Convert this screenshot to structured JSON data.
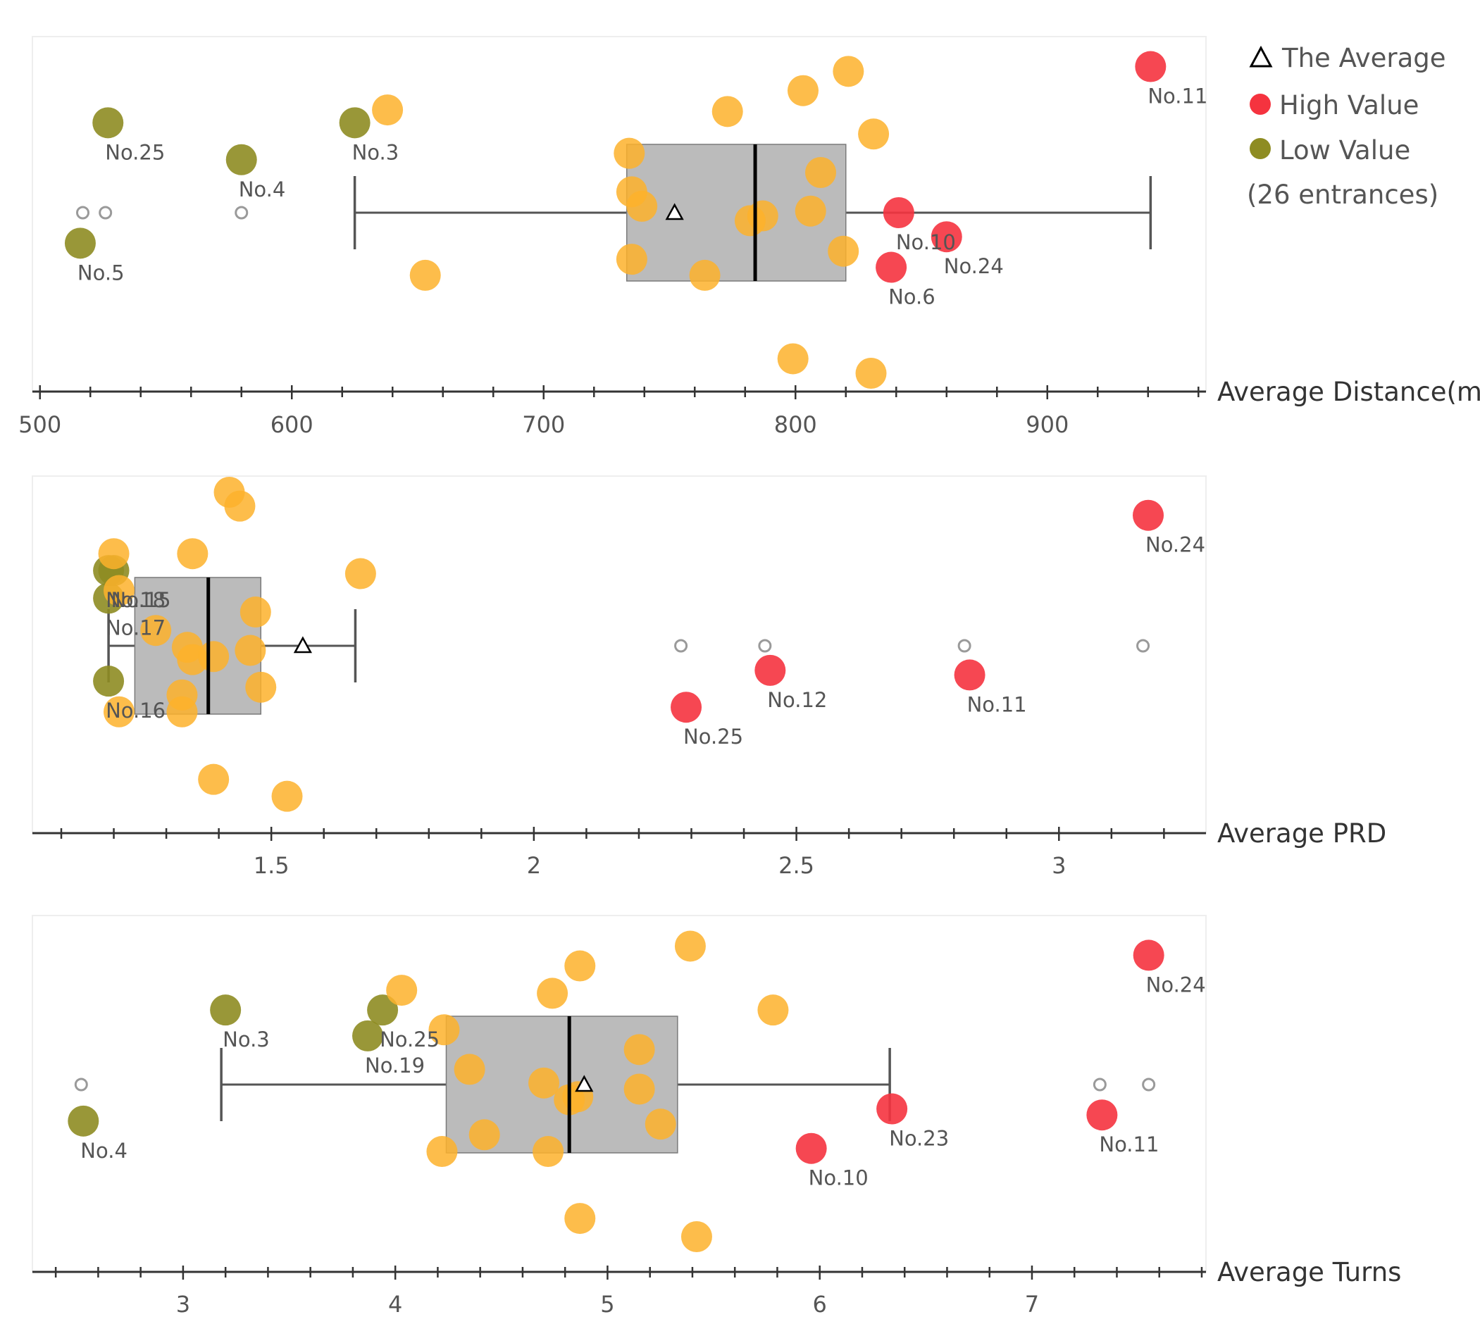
{
  "legend": {
    "average": "The Average",
    "high": "High Value",
    "low": "Low Value",
    "note": "(26 entrances)"
  },
  "colors": {
    "normal": "#FDB22B",
    "high": "#F5333F",
    "low": "#8E8C22",
    "box": "#9E9E9E",
    "whisker": "#555555",
    "median": "#000000",
    "outlier": "#9A9A9A",
    "frame": "#EEEEEE"
  },
  "chart_data": [
    {
      "type": "box-scatter",
      "xlabel": "Average Distance(m)",
      "xlim": [
        497,
        963
      ],
      "ticks": [
        500,
        600,
        700,
        800,
        900
      ],
      "tick_labels": [
        "500",
        "600",
        "700",
        "800",
        "900"
      ],
      "minor_step": 20,
      "box": {
        "q1": 733,
        "median": 784,
        "q3": 820,
        "whisker_low": 625,
        "whisker_high": 941,
        "mean": 752
      },
      "outliers": [
        517,
        526,
        580
      ],
      "points": [
        {
          "value": 941,
          "jitter": 0.91,
          "category": "high",
          "label": "No.11"
        },
        {
          "value": 841,
          "jitter": 0.0,
          "category": "high",
          "label": "No.10"
        },
        {
          "value": 860,
          "jitter": -0.15,
          "category": "high",
          "label": "No.24"
        },
        {
          "value": 838,
          "jitter": -0.34,
          "category": "high",
          "label": "No.6"
        },
        {
          "value": 527,
          "jitter": 0.56,
          "category": "low",
          "label": "No.25"
        },
        {
          "value": 580,
          "jitter": 0.33,
          "category": "low",
          "label": "No.4"
        },
        {
          "value": 625,
          "jitter": 0.56,
          "category": "low",
          "label": "No.3"
        },
        {
          "value": 516,
          "jitter": -0.19,
          "category": "low",
          "label": "No.5"
        },
        {
          "value": 821,
          "jitter": 0.88,
          "category": "normal",
          "label": ""
        },
        {
          "value": 803,
          "jitter": 0.76,
          "category": "normal",
          "label": ""
        },
        {
          "value": 638,
          "jitter": 0.64,
          "category": "normal",
          "label": ""
        },
        {
          "value": 773,
          "jitter": 0.63,
          "category": "normal",
          "label": ""
        },
        {
          "value": 831,
          "jitter": 0.49,
          "category": "normal",
          "label": ""
        },
        {
          "value": 734,
          "jitter": 0.37,
          "category": "normal",
          "label": ""
        },
        {
          "value": 810,
          "jitter": 0.25,
          "category": "normal",
          "label": ""
        },
        {
          "value": 735,
          "jitter": 0.13,
          "category": "normal",
          "label": ""
        },
        {
          "value": 739,
          "jitter": 0.04,
          "category": "normal",
          "label": ""
        },
        {
          "value": 806,
          "jitter": 0.01,
          "category": "normal",
          "label": ""
        },
        {
          "value": 787,
          "jitter": -0.02,
          "category": "normal",
          "label": ""
        },
        {
          "value": 782,
          "jitter": -0.05,
          "category": "normal",
          "label": ""
        },
        {
          "value": 819,
          "jitter": -0.24,
          "category": "normal",
          "label": ""
        },
        {
          "value": 735,
          "jitter": -0.29,
          "category": "normal",
          "label": ""
        },
        {
          "value": 653,
          "jitter": -0.39,
          "category": "normal",
          "label": ""
        },
        {
          "value": 764,
          "jitter": -0.39,
          "category": "normal",
          "label": ""
        },
        {
          "value": 799,
          "jitter": -0.91,
          "category": "normal",
          "label": ""
        },
        {
          "value": 830,
          "jitter": -1.0,
          "category": "normal",
          "label": ""
        }
      ]
    },
    {
      "type": "box-scatter",
      "xlabel": "Average PRD",
      "xlim": [
        1.045,
        3.28
      ],
      "ticks": [
        1.5,
        2,
        2.5,
        3
      ],
      "tick_labels": [
        "1.5",
        "2",
        "2.5",
        "3"
      ],
      "minor_step": 0.1,
      "box": {
        "q1": 1.24,
        "median": 1.38,
        "q3": 1.48,
        "whisker_low": 1.19,
        "whisker_high": 1.66,
        "mean": 1.56
      },
      "outliers": [
        2.28,
        2.44,
        2.82,
        3.16
      ],
      "points": [
        {
          "value": 3.17,
          "jitter": 0.85,
          "category": "high",
          "label": "No.24"
        },
        {
          "value": 2.45,
          "jitter": -0.16,
          "category": "high",
          "label": "No.12"
        },
        {
          "value": 2.83,
          "jitter": -0.19,
          "category": "high",
          "label": "No.11"
        },
        {
          "value": 2.29,
          "jitter": -0.4,
          "category": "high",
          "label": "No.25"
        },
        {
          "value": 1.19,
          "jitter": 0.49,
          "category": "low",
          "label": "No.18"
        },
        {
          "value": 1.2,
          "jitter": 0.49,
          "category": "low",
          "label": "No.15"
        },
        {
          "value": 1.19,
          "jitter": 0.31,
          "category": "low",
          "label": "No.17"
        },
        {
          "value": 1.19,
          "jitter": -0.23,
          "category": "low",
          "label": "No.16"
        },
        {
          "value": 1.42,
          "jitter": 1.0,
          "category": "normal",
          "label": ""
        },
        {
          "value": 1.44,
          "jitter": 0.91,
          "category": "normal",
          "label": ""
        },
        {
          "value": 1.35,
          "jitter": 0.6,
          "category": "normal",
          "label": ""
        },
        {
          "value": 1.2,
          "jitter": 0.6,
          "category": "normal",
          "label": ""
        },
        {
          "value": 1.67,
          "jitter": 0.47,
          "category": "normal",
          "label": ""
        },
        {
          "value": 1.21,
          "jitter": 0.36,
          "category": "normal",
          "label": ""
        },
        {
          "value": 1.47,
          "jitter": 0.22,
          "category": "normal",
          "label": ""
        },
        {
          "value": 1.28,
          "jitter": 0.1,
          "category": "normal",
          "label": ""
        },
        {
          "value": 1.34,
          "jitter": -0.01,
          "category": "normal",
          "label": ""
        },
        {
          "value": 1.46,
          "jitter": -0.03,
          "category": "normal",
          "label": ""
        },
        {
          "value": 1.35,
          "jitter": -0.09,
          "category": "normal",
          "label": ""
        },
        {
          "value": 1.39,
          "jitter": -0.07,
          "category": "normal",
          "label": ""
        },
        {
          "value": 1.48,
          "jitter": -0.27,
          "category": "normal",
          "label": ""
        },
        {
          "value": 1.33,
          "jitter": -0.32,
          "category": "normal",
          "label": ""
        },
        {
          "value": 1.21,
          "jitter": -0.43,
          "category": "normal",
          "label": ""
        },
        {
          "value": 1.33,
          "jitter": -0.43,
          "category": "normal",
          "label": ""
        },
        {
          "value": 1.39,
          "jitter": -0.87,
          "category": "normal",
          "label": ""
        },
        {
          "value": 1.53,
          "jitter": -0.98,
          "category": "normal",
          "label": ""
        }
      ]
    },
    {
      "type": "box-scatter",
      "xlabel": "Average Turns",
      "xlim": [
        2.29,
        7.82
      ],
      "ticks": [
        3,
        4,
        5,
        6,
        7
      ],
      "tick_labels": [
        "3",
        "4",
        "5",
        "6",
        "7"
      ],
      "minor_step": 0.2,
      "box": {
        "q1": 4.24,
        "median": 4.82,
        "q3": 5.33,
        "whisker_low": 3.18,
        "whisker_high": 6.33,
        "mean": 4.89
      },
      "outliers": [
        2.52,
        7.32,
        7.55
      ],
      "points": [
        {
          "value": 7.55,
          "jitter": 0.85,
          "category": "high",
          "label": "No.24"
        },
        {
          "value": 6.34,
          "jitter": -0.16,
          "category": "high",
          "label": "No.23"
        },
        {
          "value": 7.33,
          "jitter": -0.2,
          "category": "high",
          "label": "No.11"
        },
        {
          "value": 5.96,
          "jitter": -0.42,
          "category": "high",
          "label": "No.10"
        },
        {
          "value": 3.2,
          "jitter": 0.49,
          "category": "low",
          "label": "No.3"
        },
        {
          "value": 3.94,
          "jitter": 0.49,
          "category": "low",
          "label": "No.25"
        },
        {
          "value": 3.87,
          "jitter": 0.32,
          "category": "low",
          "label": "No.19"
        },
        {
          "value": 2.53,
          "jitter": -0.24,
          "category": "low",
          "label": "No.4"
        },
        {
          "value": 5.39,
          "jitter": 0.91,
          "category": "normal",
          "label": ""
        },
        {
          "value": 4.87,
          "jitter": 0.78,
          "category": "normal",
          "label": ""
        },
        {
          "value": 4.03,
          "jitter": 0.62,
          "category": "normal",
          "label": ""
        },
        {
          "value": 4.74,
          "jitter": 0.6,
          "category": "normal",
          "label": ""
        },
        {
          "value": 5.78,
          "jitter": 0.49,
          "category": "normal",
          "label": ""
        },
        {
          "value": 4.23,
          "jitter": 0.36,
          "category": "normal",
          "label": ""
        },
        {
          "value": 5.15,
          "jitter": 0.23,
          "category": "normal",
          "label": ""
        },
        {
          "value": 4.35,
          "jitter": 0.1,
          "category": "normal",
          "label": ""
        },
        {
          "value": 4.7,
          "jitter": 0.01,
          "category": "normal",
          "label": ""
        },
        {
          "value": 5.15,
          "jitter": -0.03,
          "category": "normal",
          "label": ""
        },
        {
          "value": 4.82,
          "jitter": -0.1,
          "category": "normal",
          "label": ""
        },
        {
          "value": 4.86,
          "jitter": -0.08,
          "category": "normal",
          "label": ""
        },
        {
          "value": 5.25,
          "jitter": -0.26,
          "category": "normal",
          "label": ""
        },
        {
          "value": 4.42,
          "jitter": -0.33,
          "category": "normal",
          "label": ""
        },
        {
          "value": 4.22,
          "jitter": -0.44,
          "category": "normal",
          "label": ""
        },
        {
          "value": 4.72,
          "jitter": -0.44,
          "category": "normal",
          "label": ""
        },
        {
          "value": 4.87,
          "jitter": -0.88,
          "category": "normal",
          "label": ""
        },
        {
          "value": 5.42,
          "jitter": -1.0,
          "category": "normal",
          "label": ""
        }
      ]
    }
  ]
}
